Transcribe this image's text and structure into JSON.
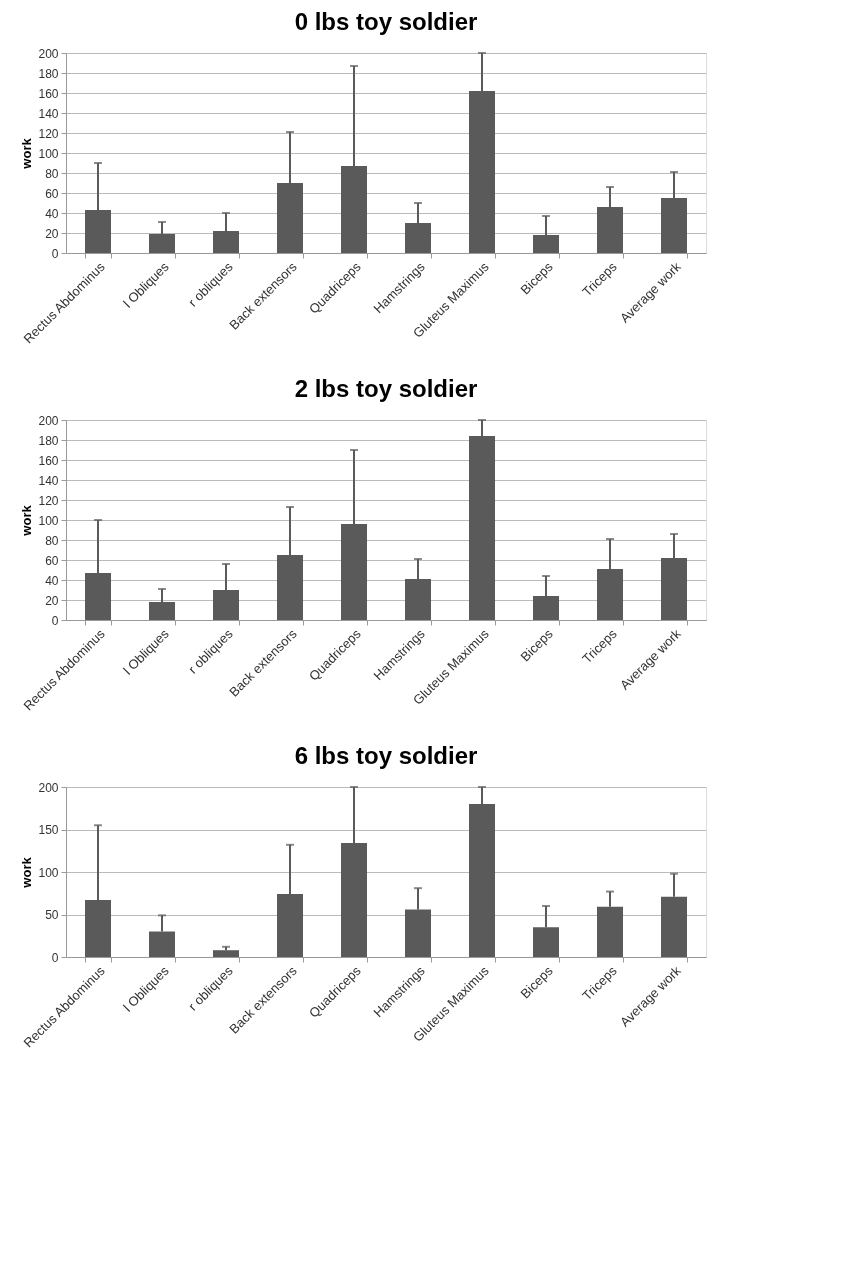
{
  "chart_data": [
    {
      "type": "bar",
      "title": "0 lbs toy soldier",
      "ylabel": "work",
      "categories": [
        "Rectus Abdominus",
        "l Obliques",
        "r obliques",
        "Back extensors",
        "Quadriceps",
        "Hamstrings",
        "Gluteus Maximus",
        "Biceps",
        "Triceps",
        "Average work"
      ],
      "values": [
        43,
        19,
        22,
        70,
        87,
        30,
        162,
        18,
        46,
        55
      ],
      "errors": [
        [
          43,
          90
        ],
        [
          19,
          31
        ],
        [
          22,
          40
        ],
        [
          70,
          121
        ],
        [
          87,
          187
        ],
        [
          30,
          50
        ],
        [
          162,
          200
        ],
        [
          18,
          37
        ],
        [
          46,
          66
        ],
        [
          55,
          81
        ]
      ],
      "color": "#5a5a5a",
      "ylim": [
        0,
        200
      ],
      "yticks": [
        0,
        20,
        40,
        60,
        80,
        100,
        120,
        140,
        160,
        180,
        200
      ],
      "grid": "y"
    },
    {
      "type": "bar",
      "title": "2 lbs toy soldier",
      "ylabel": "work",
      "categories": [
        "Rectus Abdominus",
        "l Obliques",
        "r obliques",
        "Back extensors",
        "Quadriceps",
        "Hamstrings",
        "Gluteus Maximus",
        "Biceps",
        "Triceps",
        "Average work"
      ],
      "values": [
        47,
        18,
        30,
        65,
        96,
        41,
        184,
        24,
        51,
        62
      ],
      "errors": [
        [
          47,
          100
        ],
        [
          18,
          31
        ],
        [
          30,
          56
        ],
        [
          65,
          113
        ],
        [
          96,
          170
        ],
        [
          41,
          61
        ],
        [
          184,
          200
        ],
        [
          24,
          44
        ],
        [
          51,
          81
        ],
        [
          62,
          86
        ]
      ],
      "color": "#5a5a5a",
      "ylim": [
        0,
        200
      ],
      "yticks": [
        0,
        20,
        40,
        60,
        80,
        100,
        120,
        140,
        160,
        180,
        200
      ],
      "grid": "y"
    },
    {
      "type": "bar",
      "title": "6 lbs toy soldier",
      "ylabel": "work",
      "categories": [
        "Rectus Abdominus",
        "l Obliques",
        "r obliques",
        "Back extensors",
        "Quadriceps",
        "Hamstrings",
        "Gluteus Maximus",
        "Biceps",
        "Triceps",
        "Average work"
      ],
      "values": [
        67,
        30,
        8,
        74,
        134,
        56,
        180,
        35,
        59,
        71
      ],
      "errors": [
        [
          67,
          155
        ],
        [
          30,
          49
        ],
        [
          8,
          12
        ],
        [
          74,
          132
        ],
        [
          134,
          200
        ],
        [
          56,
          81
        ],
        [
          180,
          200
        ],
        [
          35,
          60
        ],
        [
          59,
          77
        ],
        [
          71,
          98
        ]
      ],
      "color": "#5a5a5a",
      "ylim": [
        0,
        200
      ],
      "yticks": [
        0,
        50,
        100,
        150,
        200
      ],
      "grid": "y"
    }
  ]
}
